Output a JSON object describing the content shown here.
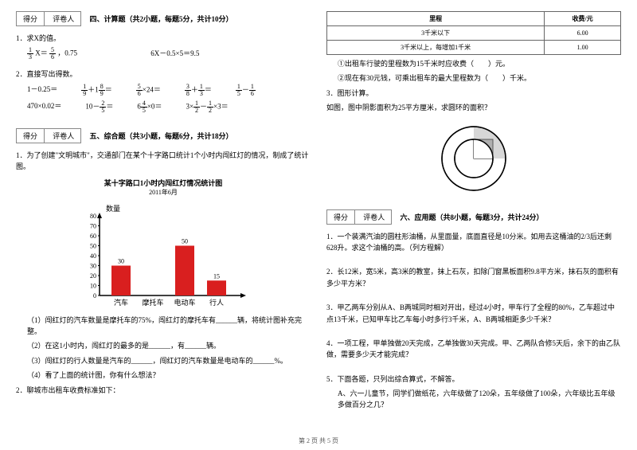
{
  "scoreLabels": {
    "score": "得分",
    "marker": "评卷人"
  },
  "section4": {
    "title": "四、计算题（共2小题，每题5分，共计10分）",
    "q1": "1．求X的值。",
    "eq1a_left": "X＝",
    "eq1a_frac1": {
      "n": "1",
      "d": "3"
    },
    "eq1a_frac2": {
      "n": "5",
      "d": "6"
    },
    "eq1a_mid": "，0.75",
    "eq1b": "6X－0.5×5＝9.5",
    "q2": "2．直接写出得数。",
    "row1": {
      "a": "1－0.25＝",
      "b_frac1": {
        "n": "1",
        "d": "9"
      },
      "b_whole": "＋1",
      "b_frac2": {
        "n": "8",
        "d": "9"
      },
      "b_eq": "＝",
      "c_frac": {
        "n": "5",
        "d": "6"
      },
      "c_rest": "×24＝",
      "d_frac1": {
        "n": "3",
        "d": "8"
      },
      "d_plus": "＋",
      "d_frac2": {
        "n": "1",
        "d": "3"
      },
      "d_eq": "＝",
      "e_frac1": {
        "n": "1",
        "d": "5"
      },
      "e_minus": "－",
      "e_frac2": {
        "n": "1",
        "d": "6"
      }
    },
    "row2": {
      "a": "470×0.02＝",
      "b_pre": "10－",
      "b_frac": {
        "n": "2",
        "d": "5"
      },
      "b_eq": "＝",
      "c_whole": "6",
      "c_frac": {
        "n": "4",
        "d": "5"
      },
      "c_rest": "×0＝",
      "d_pre": "3×",
      "d_frac1": {
        "n": "1",
        "d": "2"
      },
      "d_minus": "－",
      "d_frac2": {
        "n": "1",
        "d": "2"
      },
      "d_rest": "×3＝"
    }
  },
  "section5": {
    "title": "五、综合题（共3小题，每题6分，共计18分）",
    "q1": "1．为了创建\"文明城市\"，交通部门在某个十字路口统计1个小时内闯红灯的情况，制成了统计图。",
    "chartTitle": "某十字路口1小时内闯红灯情况统计图",
    "chartDate": "2011年6月",
    "yLabel": "数量",
    "yTicks": [
      "80",
      "70",
      "60",
      "50",
      "40",
      "30",
      "20",
      "10",
      "0"
    ],
    "categories": [
      "汽车",
      "摩托车",
      "电动车",
      "行人"
    ],
    "values": [
      30,
      null,
      50,
      15
    ],
    "barColor": "#d91f1f",
    "axisColor": "#000000",
    "sub1": "（1）闯红灯的汽车数量是摩托车的75%，闯红灯的摩托车有______辆，将统计图补充完整。",
    "sub2": "（2）在这1小时内，闯红灯的最多的是______，有______辆。",
    "sub3": "（3）闯红灯的行人数量是汽车的______，闯红灯的汽车数量是电动车的______%。",
    "sub4": "（4）看了上面的统计图，你有什么想法？",
    "q2": "2．聊城市出租车收费标准如下："
  },
  "feeTable": {
    "h1": "里程",
    "h2": "收费/元",
    "r1c1": "3千米以下",
    "r1c2": "6.00",
    "r2c1": "3千米以上，每增加1千米",
    "r2c2": "1.00"
  },
  "feeSub1": "①出租车行驶的里程数为15千米时应收费（　　）元。",
  "feeSub2": "②现在有30元钱，可乘出租车的最大里程数为（　　）千米。",
  "geo": {
    "q3": "3．图形计算。",
    "desc": "如图，图中阴影面积为25平方厘米，求圆环的面积？"
  },
  "section6": {
    "title": "六、应用题（共8小题，每题3分，共计24分）",
    "q1": "1．一个装满汽油的圆柱形油桶，从里面量，底面直径是10分米。如用去这桶油的2/3后还剩628升。求这个油桶的高。（列方程解）",
    "q2": "2．长12米，宽5米，高3米的教室，抹上石灰，扣除门窗黑板面积9.8平方米，抹石灰的面积有多少平方米？",
    "q3": "3．甲乙两车分别从A、B两城同时相对开出，经过4小时，甲车行了全程的80%，乙车超过中点13千米，已知甲车比乙车每小时多行3千米，A、B两城相距多少千米？",
    "q4": "4．一项工程，甲单独做20天完成，乙单独做30天完成。甲、乙两队合修5天后，余下的由乙队做，需要多少天才能完成？",
    "q5": "5．下面各题，只列出综合算式，不解答。",
    "q5a": "A、六一儿童节，同学们做纸花，六年级做了120朵，五年级做了100朵，六年级比五年级多做百分之几？"
  },
  "footer": "第 2 页 共 5 页"
}
